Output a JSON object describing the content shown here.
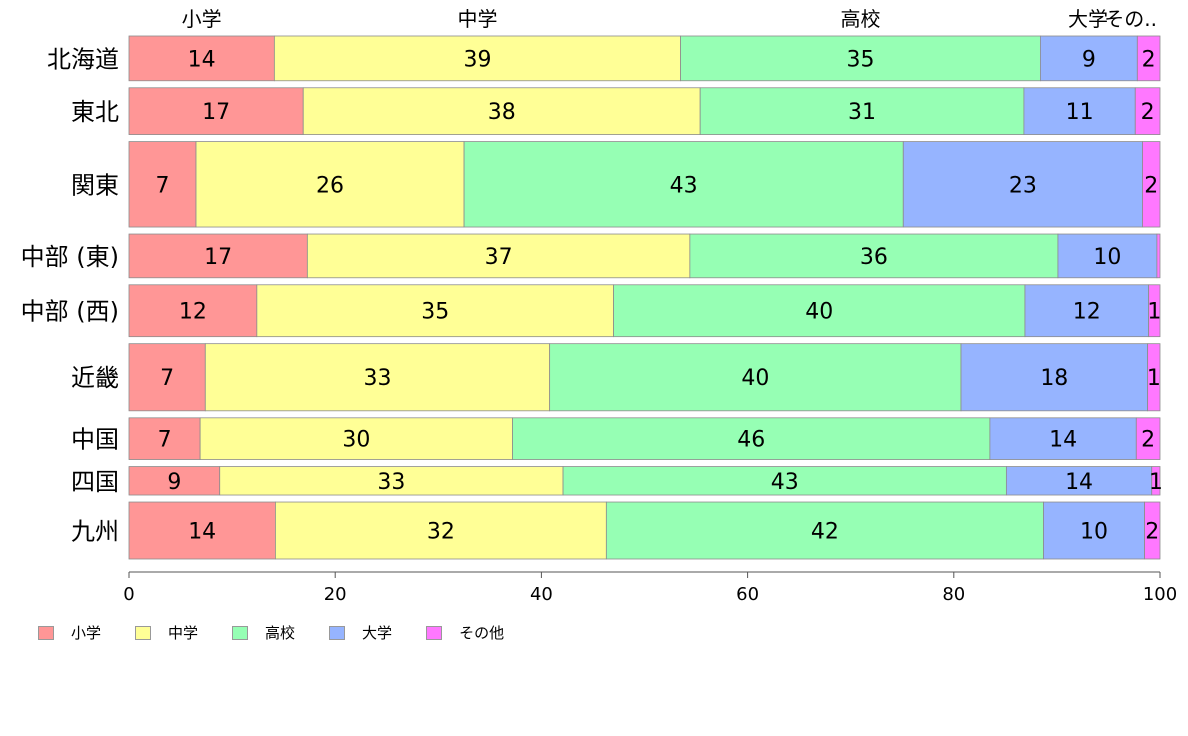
{
  "chart_data": {
    "type": "bar",
    "orientation": "horizontal",
    "stacked": true,
    "categories": [
      "北海道",
      "東北",
      "関東",
      "中部 (東)",
      "中部 (西)",
      "近畿",
      "中国",
      "四国",
      "九州"
    ],
    "series": [
      {
        "name": "小学",
        "top_label": "小学",
        "color": "#ff9696",
        "values": [
          14.1,
          16.9,
          6.5,
          17.3,
          12.4,
          7.4,
          6.9,
          8.8,
          14.2
        ],
        "labels": [
          "14",
          "17",
          "7",
          "17",
          "12",
          "7",
          "7",
          "9",
          "14"
        ]
      },
      {
        "name": "中学",
        "top_label": "中学",
        "color": "#ffff96",
        "values": [
          39.4,
          38.5,
          26.0,
          37.1,
          34.6,
          33.4,
          30.3,
          33.3,
          32.1
        ],
        "labels": [
          "39",
          "38",
          "26",
          "37",
          "35",
          "33",
          "30",
          "33",
          "32"
        ]
      },
      {
        "name": "高校",
        "top_label": "高校",
        "color": "#96ffb4",
        "values": [
          34.9,
          31.4,
          42.6,
          35.7,
          39.9,
          39.9,
          46.3,
          43.0,
          42.4
        ],
        "labels": [
          "35",
          "31",
          "43",
          "36",
          "40",
          "40",
          "46",
          "43",
          "42"
        ]
      },
      {
        "name": "大学",
        "top_label": "大学",
        "color": "#96b4ff",
        "values": [
          9.4,
          10.8,
          23.2,
          9.6,
          12.0,
          18.1,
          14.2,
          14.1,
          9.8
        ],
        "labels": [
          "9",
          "11",
          "23",
          "10",
          "12",
          "18",
          "14",
          "14",
          "10"
        ]
      },
      {
        "name": "その他",
        "top_label": "その..",
        "color": "#ff78ff",
        "values": [
          2.2,
          2.4,
          1.7,
          0.3,
          1.1,
          1.2,
          2.3,
          0.8,
          1.5
        ],
        "labels": [
          "2",
          "2",
          "2",
          "",
          "1",
          "1",
          "2",
          "1",
          "2"
        ]
      }
    ],
    "row_weights": [
      0.88,
      0.92,
      1.68,
      0.86,
      1.02,
      1.32,
      0.82,
      0.56,
      1.12
    ],
    "xlim": [
      0,
      100
    ],
    "xticks": [
      "0",
      "20",
      "40",
      "60",
      "80",
      "100"
    ],
    "legend_position": "bottom-left",
    "grid": false
  }
}
